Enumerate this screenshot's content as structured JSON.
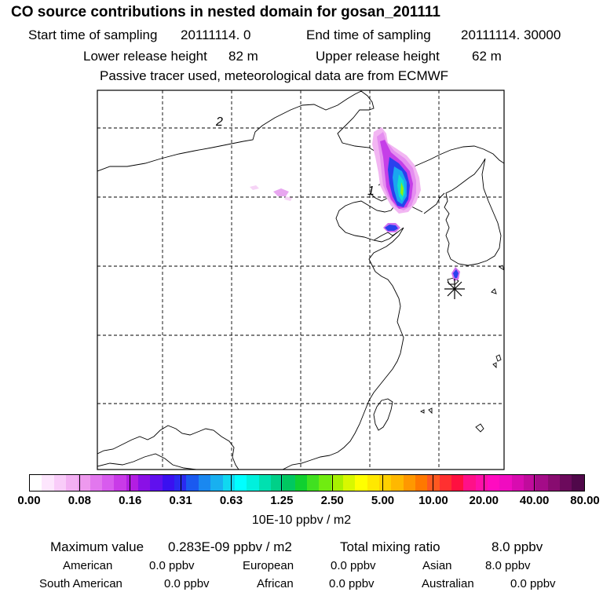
{
  "title": "CO  source contributions in nested domain for gosan_201111",
  "sampling": {
    "start_label": "Start time of sampling",
    "start_value": "20111114.     0",
    "end_label": "End time of sampling",
    "end_value": "20111114. 30000"
  },
  "release": {
    "lower_label": "Lower release height",
    "lower_value": "82 m",
    "upper_label": "Upper release height",
    "upper_value": "62 m"
  },
  "note": "Passive tracer used, meteorological data are from ECMWF",
  "map": {
    "grid_labels": [
      "2",
      "1"
    ],
    "receptor": "gosan"
  },
  "colorbar": {
    "ticks": [
      "0.00",
      "0.08",
      "0.16",
      "0.31",
      "0.63",
      "1.25",
      "2.50",
      "5.00",
      "10.00",
      "20.00",
      "40.00",
      "80.00"
    ],
    "swatches": [
      "#ffffff",
      "#fde6fd",
      "#f9ccf9",
      "#f3b0f3",
      "#ee99ee",
      "#e277ee",
      "#d85bee",
      "#c93be8",
      "#b31ee2",
      "#8a10e6",
      "#6010ee",
      "#3a10f0",
      "#2a2af0",
      "#1a5af0",
      "#1a88f0",
      "#18b0f0",
      "#10d8f0",
      "#00ffff",
      "#00f0dd",
      "#00e0b0",
      "#00d088",
      "#00c860",
      "#10d030",
      "#40e020",
      "#70ec10",
      "#a8f000",
      "#d8f800",
      "#ffff00",
      "#ffe800",
      "#ffd000",
      "#ffb800",
      "#ff9800",
      "#ff7800",
      "#ff5820",
      "#ff3030",
      "#ff1040",
      "#ff1088",
      "#ff10a8",
      "#ff0cc0",
      "#f00cc0",
      "#d80cb0",
      "#c00c9c",
      "#a40c88",
      "#880c70",
      "#6c0a5c",
      "#50084a"
    ],
    "units": "10E-10 ppbv / m2"
  },
  "stats": {
    "max_label": "Maximum value",
    "max_value": "0.283E-09 ppbv / m2",
    "total_label": "Total mixing ratio",
    "total_value": "8.0 ppbv"
  },
  "regions": [
    {
      "name": "American",
      "value": "0.0 ppbv"
    },
    {
      "name": "European",
      "value": "0.0 ppbv"
    },
    {
      "name": "Asian",
      "value": "8.0 ppbv"
    },
    {
      "name": "South American",
      "value": "0.0 ppbv"
    },
    {
      "name": "African",
      "value": "0.0 ppbv"
    },
    {
      "name": "Australian",
      "value": "0.0 ppbv"
    }
  ]
}
